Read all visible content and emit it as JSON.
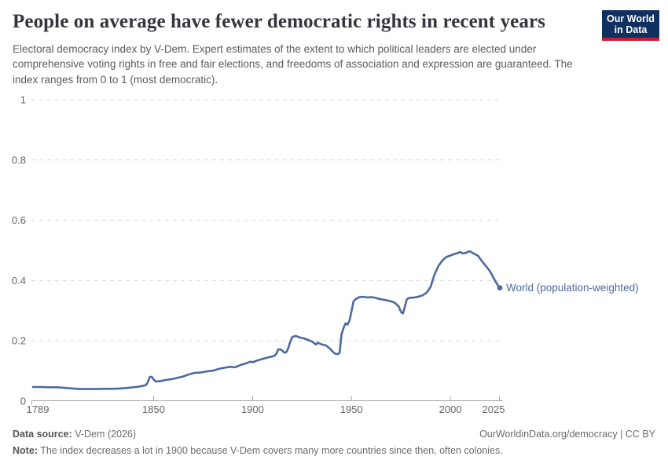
{
  "header": {
    "logo": {
      "line1": "Our World",
      "line2": "in Data",
      "bg_color": "#103060",
      "accent_color": "#cf1b2f"
    }
  },
  "chart_data": {
    "type": "line",
    "title": "People on average have fewer democratic rights in recent years",
    "subtitle": "Electoral democracy index by V-Dem. Expert estimates of the extent to which political leaders are elected under comprehensive voting rights in free and fair elections, and freedoms of association and expression are guaranteed. The index ranges from 0 to 1 (most democratic).",
    "xlabel": "",
    "ylabel": "",
    "xlim": [
      1789,
      2025
    ],
    "ylim": [
      0,
      1
    ],
    "grid": "horizontal-dashed",
    "legend_position": "end-of-line-label",
    "x_tick_labels": [
      "1789",
      "1850",
      "1900",
      "1950",
      "2000",
      "2025"
    ],
    "y_tick_labels": [
      "1",
      "0.8",
      "0.6",
      "0.4",
      "0.2",
      "0"
    ],
    "series": [
      {
        "name": "World (population-weighted)",
        "color": "#4C6A9C",
        "points": [
          [
            1789,
            0.047
          ],
          [
            1793,
            0.047
          ],
          [
            1797,
            0.046
          ],
          [
            1801,
            0.046
          ],
          [
            1805,
            0.044
          ],
          [
            1809,
            0.042
          ],
          [
            1813,
            0.04
          ],
          [
            1817,
            0.04
          ],
          [
            1821,
            0.04
          ],
          [
            1825,
            0.041
          ],
          [
            1829,
            0.041
          ],
          [
            1833,
            0.042
          ],
          [
            1837,
            0.044
          ],
          [
            1841,
            0.047
          ],
          [
            1844,
            0.05
          ],
          [
            1846,
            0.053
          ],
          [
            1847,
            0.062
          ],
          [
            1848,
            0.08
          ],
          [
            1849,
            0.081
          ],
          [
            1850,
            0.072
          ],
          [
            1851,
            0.065
          ],
          [
            1853,
            0.066
          ],
          [
            1856,
            0.07
          ],
          [
            1859,
            0.073
          ],
          [
            1862,
            0.077
          ],
          [
            1865,
            0.082
          ],
          [
            1868,
            0.089
          ],
          [
            1871,
            0.094
          ],
          [
            1874,
            0.095
          ],
          [
            1877,
            0.099
          ],
          [
            1880,
            0.101
          ],
          [
            1883,
            0.107
          ],
          [
            1886,
            0.111
          ],
          [
            1889,
            0.114
          ],
          [
            1891,
            0.112
          ],
          [
            1894,
            0.12
          ],
          [
            1897,
            0.126
          ],
          [
            1899,
            0.131
          ],
          [
            1900,
            0.129
          ],
          [
            1902,
            0.134
          ],
          [
            1905,
            0.14
          ],
          [
            1908,
            0.145
          ],
          [
            1911,
            0.15
          ],
          [
            1912,
            0.157
          ],
          [
            1913,
            0.172
          ],
          [
            1914,
            0.172
          ],
          [
            1915,
            0.168
          ],
          [
            1916,
            0.161
          ],
          [
            1917,
            0.162
          ],
          [
            1918,
            0.175
          ],
          [
            1919,
            0.196
          ],
          [
            1920,
            0.212
          ],
          [
            1921,
            0.215
          ],
          [
            1922,
            0.216
          ],
          [
            1924,
            0.211
          ],
          [
            1926,
            0.208
          ],
          [
            1928,
            0.203
          ],
          [
            1930,
            0.198
          ],
          [
            1932,
            0.188
          ],
          [
            1933,
            0.194
          ],
          [
            1935,
            0.188
          ],
          [
            1937,
            0.185
          ],
          [
            1938,
            0.18
          ],
          [
            1939,
            0.175
          ],
          [
            1940,
            0.168
          ],
          [
            1941,
            0.161
          ],
          [
            1942,
            0.157
          ],
          [
            1943,
            0.156
          ],
          [
            1944,
            0.16
          ],
          [
            1945,
            0.222
          ],
          [
            1946,
            0.243
          ],
          [
            1947,
            0.258
          ],
          [
            1948,
            0.254
          ],
          [
            1949,
            0.267
          ],
          [
            1950,
            0.297
          ],
          [
            1951,
            0.33
          ],
          [
            1952,
            0.338
          ],
          [
            1954,
            0.345
          ],
          [
            1956,
            0.346
          ],
          [
            1958,
            0.344
          ],
          [
            1960,
            0.345
          ],
          [
            1962,
            0.343
          ],
          [
            1964,
            0.339
          ],
          [
            1966,
            0.337
          ],
          [
            1968,
            0.334
          ],
          [
            1970,
            0.331
          ],
          [
            1972,
            0.326
          ],
          [
            1974,
            0.313
          ],
          [
            1975,
            0.296
          ],
          [
            1976,
            0.291
          ],
          [
            1977,
            0.314
          ],
          [
            1978,
            0.338
          ],
          [
            1979,
            0.342
          ],
          [
            1980,
            0.343
          ],
          [
            1982,
            0.344
          ],
          [
            1984,
            0.347
          ],
          [
            1986,
            0.351
          ],
          [
            1988,
            0.36
          ],
          [
            1990,
            0.379
          ],
          [
            1992,
            0.42
          ],
          [
            1994,
            0.449
          ],
          [
            1996,
            0.467
          ],
          [
            1998,
            0.478
          ],
          [
            2000,
            0.483
          ],
          [
            2002,
            0.488
          ],
          [
            2004,
            0.492
          ],
          [
            2005,
            0.495
          ],
          [
            2006,
            0.49
          ],
          [
            2008,
            0.492
          ],
          [
            2009,
            0.496
          ],
          [
            2010,
            0.497
          ],
          [
            2011,
            0.493
          ],
          [
            2012,
            0.489
          ],
          [
            2014,
            0.482
          ],
          [
            2016,
            0.464
          ],
          [
            2018,
            0.448
          ],
          [
            2020,
            0.431
          ],
          [
            2022,
            0.407
          ],
          [
            2023,
            0.395
          ],
          [
            2024,
            0.384
          ],
          [
            2025,
            0.376
          ]
        ]
      }
    ]
  },
  "footer": {
    "source_label": "Data source:",
    "source_value": " V-Dem (2026)",
    "citation": "OurWorldinData.org/democracy | CC BY",
    "note_label": "Note:",
    "note_text": " The index decreases a lot in 1900 because V-Dem covers many more countries since then, often colonies."
  }
}
